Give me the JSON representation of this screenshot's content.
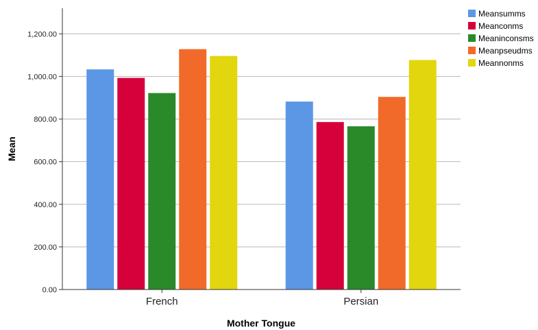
{
  "chart_data": {
    "type": "bar",
    "title": "",
    "xlabel": "Mother Tongue",
    "ylabel": "Mean",
    "categories": [
      "French",
      "Persian"
    ],
    "ylim": [
      0,
      1320
    ],
    "yticks": [
      "0.00",
      "200.00",
      "400.00",
      "600.00",
      "800.00",
      "1,000.00",
      "1,200.00"
    ],
    "ytick_values": [
      0,
      200,
      400,
      600,
      800,
      1000,
      1200
    ],
    "grid": true,
    "legend_position": "top-right",
    "series": [
      {
        "name": "Meansumms",
        "color": "#5b97e5",
        "values": [
          1033,
          882
        ]
      },
      {
        "name": "Meanconms",
        "color": "#d6003a",
        "values": [
          993,
          786
        ]
      },
      {
        "name": "Meaninconsms",
        "color": "#2a8a2a",
        "values": [
          922,
          766
        ]
      },
      {
        "name": "Meanpseudms",
        "color": "#f26a2a",
        "values": [
          1128,
          904
        ]
      },
      {
        "name": "Meannonms",
        "color": "#e2d60e",
        "values": [
          1096,
          1077
        ]
      }
    ]
  }
}
